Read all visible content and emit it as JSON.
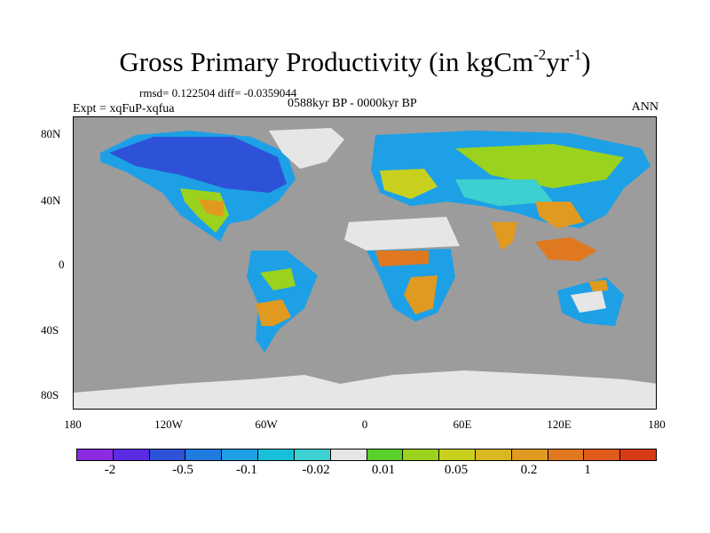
{
  "header": {
    "title_main": "Gross Primary Productivity (in kgCm",
    "title_sup1": "-2",
    "title_mid": "yr",
    "title_sup2": "-1",
    "title_end": ")",
    "stats": "rmsd= 0.122504 diff= -0.0359044",
    "experiment": "Expt = xqFuP-xqfua",
    "period": "0588kyr BP - 0000kyr BP",
    "season": "ANN"
  },
  "axes": {
    "lat_labels": [
      "80N",
      "40N",
      "0",
      "40S",
      "80S"
    ],
    "lon_labels": [
      "180",
      "120W",
      "60W",
      "0",
      "60E",
      "120E",
      "180"
    ]
  },
  "colorbar": {
    "colors": [
      "#8a2be2",
      "#5a2be2",
      "#2d52d8",
      "#1f7be0",
      "#1ea0e6",
      "#17c0d8",
      "#3cd0d0",
      "#e6e6e6",
      "#5ad02a",
      "#9ad21e",
      "#c8d01e",
      "#d8b820",
      "#e09a20",
      "#e07820",
      "#e05a1c",
      "#d83a14"
    ],
    "labels": [
      "-2",
      "-0.5",
      "-0.1",
      "-0.02",
      "0.01",
      "0.05",
      "0.2",
      "1"
    ]
  },
  "map_colors": {
    "ocean": "#9c9c9c",
    "ice": "#e6e6e6",
    "dark_blue": "#2d52d8",
    "blue": "#1f7be0",
    "light_blue": "#1ea0e6",
    "cyan": "#3cd0d0",
    "green": "#9ad21e",
    "yellow": "#c8d01e",
    "orange": "#e09a20",
    "red_orange": "#e07820"
  }
}
